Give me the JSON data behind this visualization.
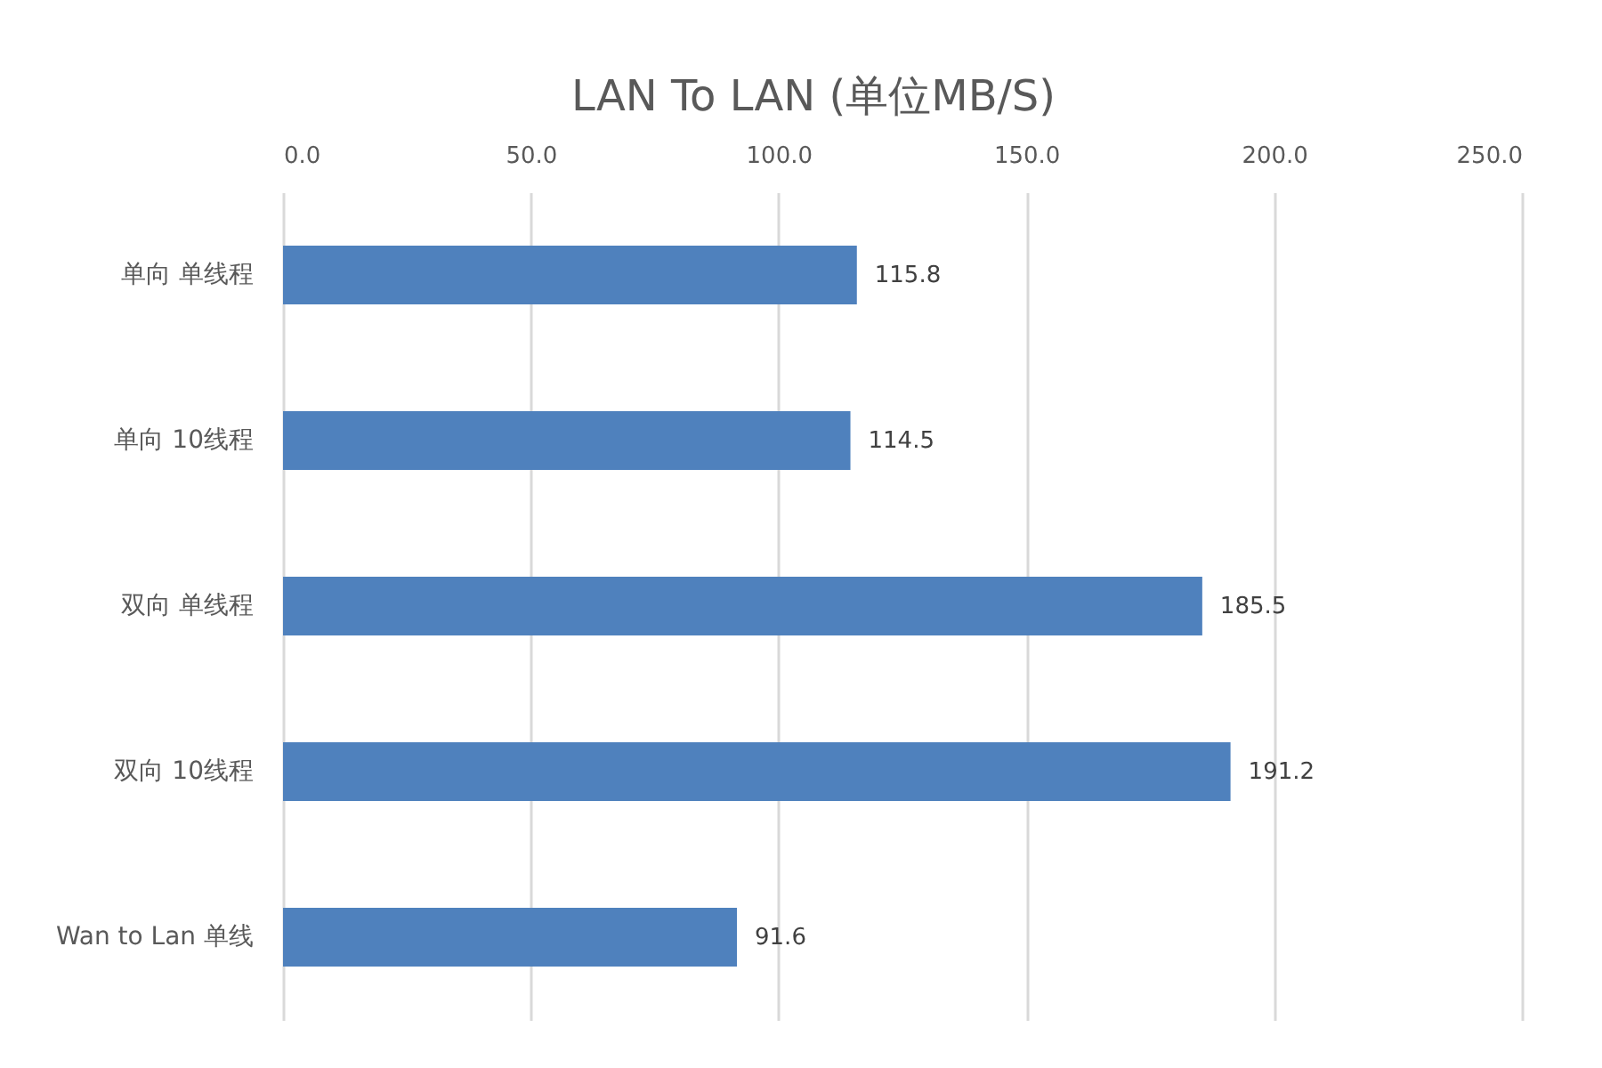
{
  "chart_data": {
    "type": "bar",
    "orientation": "horizontal",
    "title": "LAN To LAN (单位MB/S)",
    "categories": [
      "单向 单线程",
      "单向 10线程",
      "双向 单线程",
      "双向 10线程",
      "Wan to Lan 单线"
    ],
    "values": [
      115.8,
      114.5,
      185.5,
      191.2,
      91.6
    ],
    "color": "#4f81bd",
    "xlim": [
      0,
      250
    ],
    "xticks": [
      {
        "value": 0,
        "label": "0.0"
      },
      {
        "value": 50,
        "label": "50.0"
      },
      {
        "value": 100,
        "label": "100.0"
      },
      {
        "value": 150,
        "label": "150.0"
      },
      {
        "value": 200,
        "label": "200.0"
      },
      {
        "value": 250,
        "label": "250.0"
      }
    ],
    "grid": "x",
    "data_labels": true
  }
}
